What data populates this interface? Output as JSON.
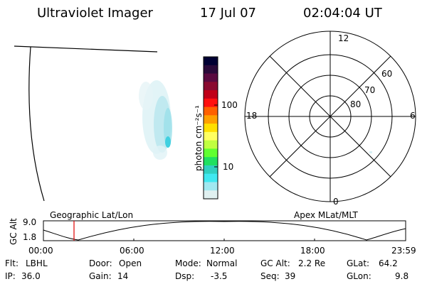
{
  "header": {
    "instrument": "Ultraviolet Imager",
    "date": "17 Jul 07",
    "time": "02:04:04 UT"
  },
  "colorbar": {
    "label": "photon cm⁻²s⁻¹",
    "ticks": [
      "100",
      "10"
    ],
    "colors": [
      "#000033",
      "#2a0a3a",
      "#5a0a40",
      "#8a0a30",
      "#c00018",
      "#ff1010",
      "#ff6000",
      "#ffa000",
      "#ffe000",
      "#ffff60",
      "#c0ff40",
      "#60ff30",
      "#20e060",
      "#30d0c0",
      "#40e8f0",
      "#a0e8f0",
      "#e0f0f0"
    ]
  },
  "polar": {
    "labels": {
      "top": "12",
      "bottom": "0",
      "left": "18",
      "right": "6",
      "lat60": "60",
      "lat70": "70",
      "lat80": "80"
    }
  },
  "orbit": {
    "left_title": "Geographic Lat/Lon",
    "right_title": "Apex MLat/MLT",
    "yaxis_label": "GC Alt",
    "y_top": "9.0",
    "y_bottom": "1.8",
    "x_ticks": [
      "00:00",
      "06:00",
      "12:00",
      "18:00",
      "23:59"
    ],
    "marker_color": "#e00000"
  },
  "info": {
    "flt_label": "Flt:",
    "flt_value": "LBHL",
    "door_label": "Door:",
    "door_value": "Open",
    "mode_label": "Mode:",
    "mode_value": "Normal",
    "gcalt_label": "GC Alt:",
    "gcalt_value": "2.2 Re",
    "glat_label": "GLat:",
    "glat_value": "64.2",
    "ip_label": "IP:",
    "ip_value": "36.0",
    "gain_label": "Gain:",
    "gain_value": "14",
    "dsp_label": "Dsp:",
    "dsp_value": "-3.5",
    "seq_label": "Seq:",
    "seq_value": "39",
    "glon_label": "GLon:",
    "glon_value": "9.8"
  }
}
